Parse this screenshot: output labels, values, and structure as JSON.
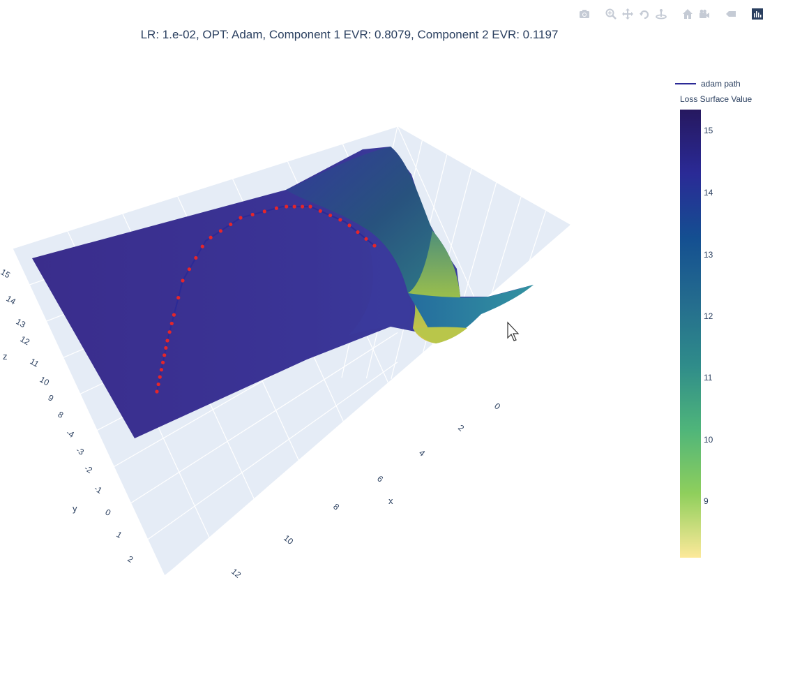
{
  "title": "LR: 1.e-02, OPT: Adam, Component 1 EVR: 0.8079, Component 2 EVR: 0.1197",
  "modebar": [
    {
      "name": "camera-icon"
    },
    {
      "name": "zoom-icon"
    },
    {
      "name": "pan-icon"
    },
    {
      "name": "orbit-rotation-icon"
    },
    {
      "name": "turntable-rotation-icon"
    },
    {
      "name": "home-icon"
    },
    {
      "name": "video-camera-icon"
    },
    {
      "name": "spike-lines-icon"
    },
    {
      "name": "plotly-logo-icon"
    }
  ],
  "legend": {
    "label": "adam path",
    "color": "#2b2a96"
  },
  "colorbar": {
    "title": "Loss Surface Value",
    "ticks": [
      "15",
      "14",
      "13",
      "12",
      "11",
      "10",
      "9"
    ],
    "colorscale": [
      "#26185f",
      "#2a2a96",
      "#144f91",
      "#246c8e",
      "#2f8c8a",
      "#4fb57a",
      "#8fcf5c",
      "#fde99a"
    ]
  },
  "chart_data": {
    "type": "surface",
    "title": "LR: 1.e-02, OPT: Adam, Component 1 EVR: 0.8079, Component 2 EVR: 0.1197",
    "axes": {
      "x": {
        "label": "x",
        "ticks": [
          "0",
          "2",
          "4",
          "6",
          "8",
          "10",
          "12"
        ]
      },
      "y": {
        "label": "y",
        "ticks": [
          "-4",
          "-3",
          "-2",
          "-1",
          "0",
          "1",
          "2"
        ]
      },
      "z": {
        "label": "z",
        "ticks": [
          "8",
          "9",
          "10",
          "11",
          "12",
          "13",
          "14",
          "15"
        ]
      }
    },
    "zlim": [
      8.1,
      15.4
    ],
    "series": [
      {
        "name": "adam path",
        "kind": "line+markers",
        "line_color": "#2b2a96",
        "marker_color": "#e5262a"
      }
    ]
  }
}
